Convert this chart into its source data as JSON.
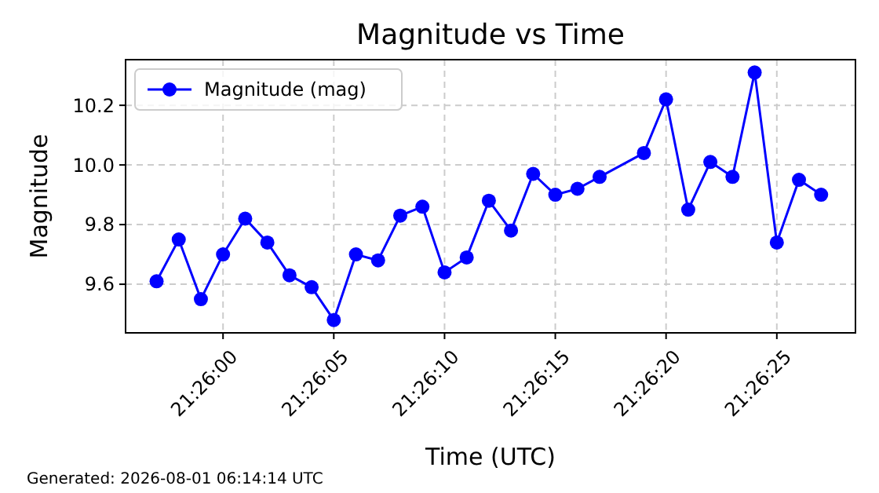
{
  "chart_data": {
    "type": "line",
    "title": "Magnitude vs Time",
    "xlabel": "Time (UTC)",
    "ylabel": "Magnitude",
    "x": [
      21.4325,
      21.4327778,
      21.4330556,
      21.4333333,
      21.4336111,
      21.4338889,
      21.4341667,
      21.4344444,
      21.4347222,
      21.435,
      21.4352778,
      21.4355556,
      21.4358333,
      21.4361111,
      21.4363889,
      21.4366667,
      21.4369444,
      21.4372222,
      21.4375,
      21.4377778,
      21.4380556,
      21.4386111,
      21.4388889,
      21.4391667,
      21.4394444,
      21.4397222,
      21.44,
      21.4402778,
      21.4405556,
      21.4408333
    ],
    "series": [
      {
        "name": "Magnitude (mag)",
        "color": "#0000ff",
        "values": [
          9.61,
          9.75,
          9.55,
          9.7,
          9.82,
          9.74,
          9.63,
          9.59,
          9.48,
          9.7,
          9.68,
          9.83,
          9.86,
          9.64,
          9.69,
          9.88,
          9.78,
          9.97,
          9.9,
          9.92,
          9.96,
          10.04,
          10.22,
          9.85,
          10.01,
          9.96,
          10.31,
          9.74,
          9.95,
          9.9
        ]
      }
    ],
    "xlim": [
      21.4321111,
      21.4412639
    ],
    "xticks": [
      {
        "value": 21.4333333,
        "label": "21:26:00"
      },
      {
        "value": 21.4347222,
        "label": "21:26:05"
      },
      {
        "value": 21.4361111,
        "label": "21:26:10"
      },
      {
        "value": 21.4375,
        "label": "21:26:15"
      },
      {
        "value": 21.4388889,
        "label": "21:26:20"
      },
      {
        "value": 21.4402778,
        "label": "21:26:25"
      }
    ],
    "ylim": [
      9.437,
      10.353
    ],
    "yticks": [
      {
        "value": 9.6,
        "label": "9.6"
      },
      {
        "value": 9.8,
        "label": "9.8"
      },
      {
        "value": 10.0,
        "label": "10.0"
      },
      {
        "value": 10.2,
        "label": "10.2"
      }
    ],
    "grid": true,
    "legend": "top left",
    "marker": "circle",
    "line_style": "solid",
    "annotations": [
      "Generated: 2026-08-01 06:14:14 UTC"
    ]
  }
}
